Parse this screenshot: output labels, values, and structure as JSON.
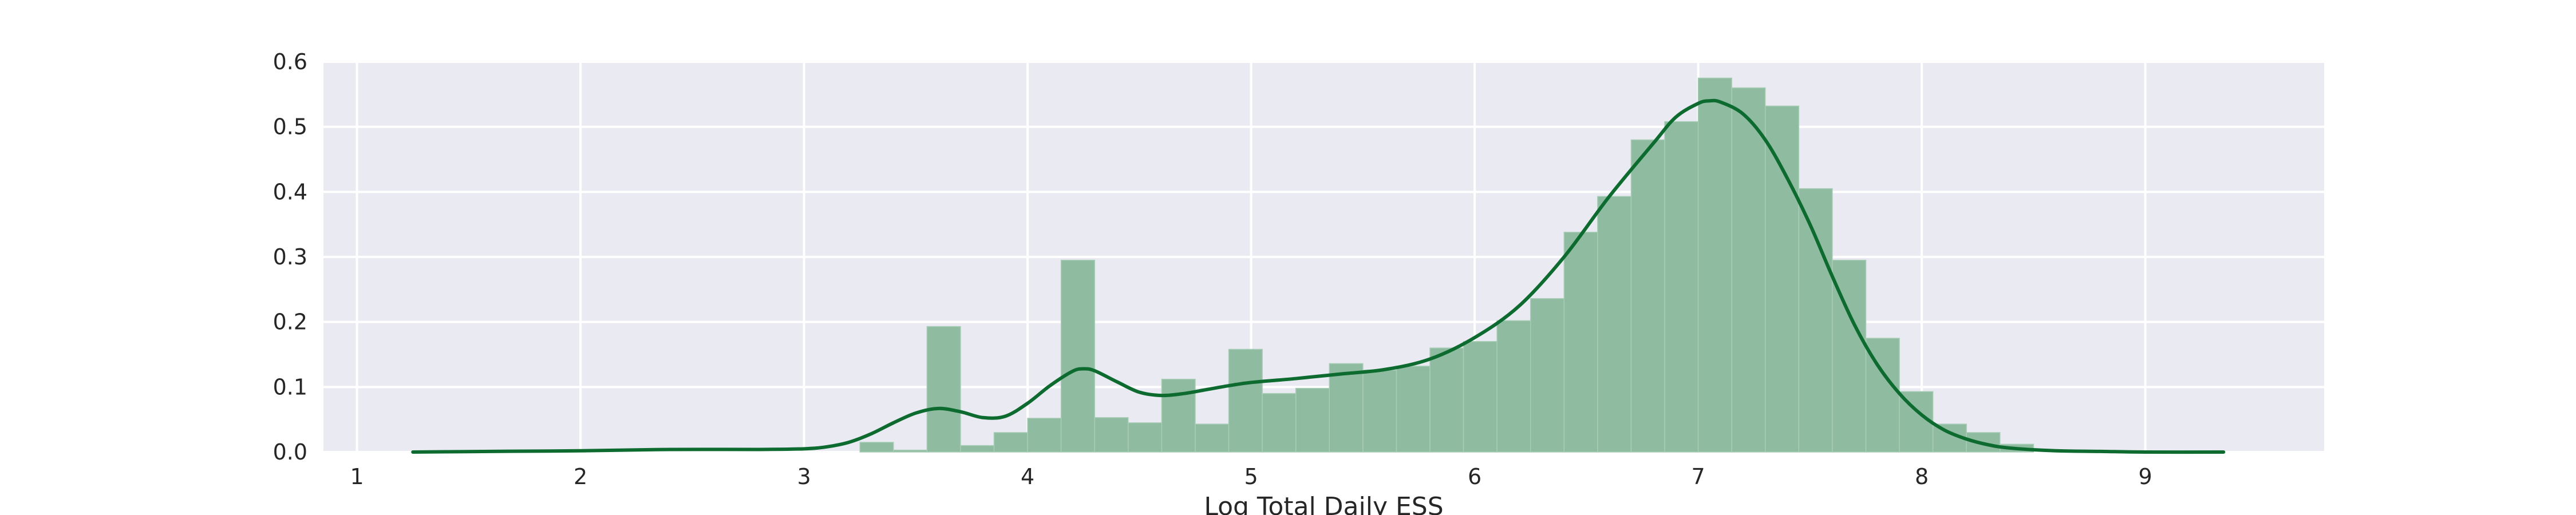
{
  "chart_data": {
    "type": "bar",
    "subtype": "histogram-with-kde",
    "title": "",
    "xlabel": "Log Total Daily ESS",
    "ylabel": "",
    "xlim": [
      0.85,
      9.8
    ],
    "ylim": [
      0,
      0.6
    ],
    "xticks": [
      "1",
      "2",
      "3",
      "4",
      "5",
      "6",
      "7",
      "8",
      "9"
    ],
    "yticks": [
      "0.0",
      "0.1",
      "0.2",
      "0.3",
      "0.4",
      "0.5",
      "0.6"
    ],
    "grid": true,
    "legend": "none",
    "colors": {
      "background": "#eaeaf2",
      "grid": "#ffffff",
      "bar_fill": "#8fbca0",
      "bar_edge": "#a8cdb6",
      "kde_line": "#0d6b30"
    },
    "histogram": {
      "bins": [
        {
          "x0": 3.25,
          "x1": 3.4,
          "value": 0.015
        },
        {
          "x0": 3.4,
          "x1": 3.55,
          "value": 0.003
        },
        {
          "x0": 3.55,
          "x1": 3.7,
          "value": 0.193
        },
        {
          "x0": 3.7,
          "x1": 3.85,
          "value": 0.01
        },
        {
          "x0": 3.85,
          "x1": 4.0,
          "value": 0.03
        },
        {
          "x0": 4.0,
          "x1": 4.15,
          "value": 0.052
        },
        {
          "x0": 4.15,
          "x1": 4.3,
          "value": 0.295
        },
        {
          "x0": 4.3,
          "x1": 4.45,
          "value": 0.053
        },
        {
          "x0": 4.45,
          "x1": 4.6,
          "value": 0.045
        },
        {
          "x0": 4.6,
          "x1": 4.75,
          "value": 0.112
        },
        {
          "x0": 4.75,
          "x1": 4.9,
          "value": 0.043
        },
        {
          "x0": 4.9,
          "x1": 5.05,
          "value": 0.158
        },
        {
          "x0": 5.05,
          "x1": 5.2,
          "value": 0.09
        },
        {
          "x0": 5.2,
          "x1": 5.35,
          "value": 0.098
        },
        {
          "x0": 5.35,
          "x1": 5.5,
          "value": 0.136
        },
        {
          "x0": 5.5,
          "x1": 5.65,
          "value": 0.126
        },
        {
          "x0": 5.65,
          "x1": 5.8,
          "value": 0.132
        },
        {
          "x0": 5.8,
          "x1": 5.95,
          "value": 0.16
        },
        {
          "x0": 5.95,
          "x1": 6.1,
          "value": 0.17
        },
        {
          "x0": 6.1,
          "x1": 6.25,
          "value": 0.202
        },
        {
          "x0": 6.25,
          "x1": 6.4,
          "value": 0.236
        },
        {
          "x0": 6.4,
          "x1": 6.55,
          "value": 0.338
        },
        {
          "x0": 6.55,
          "x1": 6.7,
          "value": 0.393
        },
        {
          "x0": 6.7,
          "x1": 6.85,
          "value": 0.48
        },
        {
          "x0": 6.85,
          "x1": 7.0,
          "value": 0.508
        },
        {
          "x0": 7.0,
          "x1": 7.15,
          "value": 0.575
        },
        {
          "x0": 7.15,
          "x1": 7.3,
          "value": 0.56
        },
        {
          "x0": 7.3,
          "x1": 7.45,
          "value": 0.532
        },
        {
          "x0": 7.45,
          "x1": 7.6,
          "value": 0.405
        },
        {
          "x0": 7.6,
          "x1": 7.75,
          "value": 0.295
        },
        {
          "x0": 7.75,
          "x1": 7.9,
          "value": 0.175
        },
        {
          "x0": 7.9,
          "x1": 8.05,
          "value": 0.093
        },
        {
          "x0": 8.05,
          "x1": 8.2,
          "value": 0.043
        },
        {
          "x0": 8.2,
          "x1": 8.35,
          "value": 0.03
        },
        {
          "x0": 8.35,
          "x1": 8.5,
          "value": 0.012
        }
      ]
    },
    "kde": {
      "x": [
        1.25,
        1.6,
        2.0,
        2.4,
        2.8,
        3.0,
        3.1,
        3.2,
        3.3,
        3.4,
        3.5,
        3.6,
        3.7,
        3.8,
        3.9,
        4.0,
        4.1,
        4.2,
        4.25,
        4.3,
        4.4,
        4.5,
        4.6,
        4.7,
        4.8,
        4.9,
        5.0,
        5.2,
        5.4,
        5.6,
        5.8,
        6.0,
        6.2,
        6.4,
        6.6,
        6.8,
        6.9,
        7.0,
        7.05,
        7.1,
        7.2,
        7.3,
        7.4,
        7.5,
        7.6,
        7.7,
        7.8,
        7.9,
        8.0,
        8.1,
        8.2,
        8.3,
        8.4,
        8.6,
        8.8,
        9.0,
        9.35
      ],
      "y": [
        0.0,
        0.001,
        0.002,
        0.004,
        0.004,
        0.005,
        0.008,
        0.015,
        0.028,
        0.045,
        0.06,
        0.067,
        0.062,
        0.053,
        0.055,
        0.075,
        0.102,
        0.124,
        0.128,
        0.125,
        0.108,
        0.092,
        0.087,
        0.09,
        0.096,
        0.102,
        0.107,
        0.113,
        0.12,
        0.127,
        0.143,
        0.176,
        0.225,
        0.3,
        0.392,
        0.475,
        0.515,
        0.536,
        0.54,
        0.538,
        0.52,
        0.48,
        0.42,
        0.35,
        0.27,
        0.195,
        0.135,
        0.09,
        0.057,
        0.034,
        0.02,
        0.011,
        0.006,
        0.002,
        0.001,
        0.0,
        0.0
      ]
    }
  }
}
